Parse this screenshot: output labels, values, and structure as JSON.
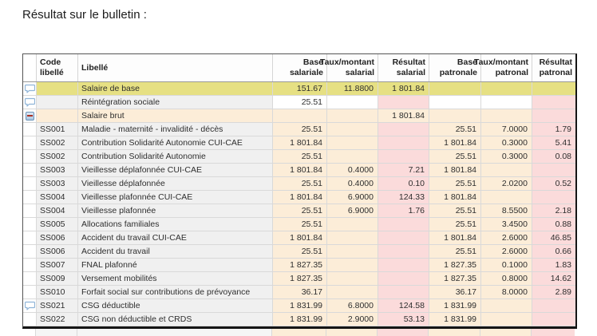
{
  "title": "Résultat sur le bulletin :",
  "colors": {
    "row_highlight_yellow": "#e6e083",
    "cell_base_beige": "#fcedd8",
    "cell_result_pink": "#fbdbdb",
    "cell_label_gray": "#f0f0f0",
    "row_outline_red": "#c5463b",
    "table_border_dark": "#151515",
    "comment_icon_blue": "#8fb4d8"
  },
  "table": {
    "columns": [
      {
        "id": "icon",
        "label": "",
        "align": "left"
      },
      {
        "id": "code",
        "label": "Code\nlibellé",
        "align": "left"
      },
      {
        "id": "libelle",
        "label": "Libellé",
        "align": "left"
      },
      {
        "id": "base_sal",
        "label": "Base\nsalariale",
        "align": "right"
      },
      {
        "id": "taux_sal",
        "label": "Taux/montant\nsalarial",
        "align": "right"
      },
      {
        "id": "res_sal",
        "label": "Résultat\nsalarial",
        "align": "right"
      },
      {
        "id": "base_pat",
        "label": "Base\npatronale",
        "align": "right"
      },
      {
        "id": "taux_pat",
        "label": "Taux/montant\npatronal",
        "align": "right"
      },
      {
        "id": "res_pat",
        "label": "Résultat\npatronal",
        "align": "right"
      }
    ],
    "rows": [
      {
        "icon": "comment",
        "code": "",
        "libelle": "Salaire de base",
        "base_sal": "151.67",
        "taux_sal": "11.8800",
        "res_sal": "1 801.84",
        "base_pat": "",
        "taux_pat": "",
        "res_pat": "",
        "type": "yellow",
        "outlined": false
      },
      {
        "icon": "comment",
        "code": "",
        "libelle": "Réintégration sociale",
        "base_sal": "25.51",
        "taux_sal": "",
        "res_sal": "",
        "base_pat": "",
        "taux_pat": "",
        "res_pat": "",
        "type": "plain",
        "outlined": false
      },
      {
        "icon": "collapse",
        "code": "",
        "libelle": "Salaire brut",
        "base_sal": "",
        "taux_sal": "",
        "res_sal": "1 801.84",
        "base_pat": "",
        "taux_pat": "",
        "res_pat": "",
        "type": "section",
        "outlined": false
      },
      {
        "icon": "",
        "code": "SS001",
        "libelle": "Maladie - maternité - invalidité - décès",
        "base_sal": "25.51",
        "taux_sal": "",
        "res_sal": "",
        "base_pat": "25.51",
        "taux_pat": "7.0000",
        "res_pat": "1.79",
        "type": "normal",
        "outlined": false
      },
      {
        "icon": "",
        "code": "SS002",
        "libelle": "Contribution Solidarité Autonomie CUI-CAE",
        "base_sal": "1 801.84",
        "taux_sal": "",
        "res_sal": "",
        "base_pat": "1 801.84",
        "taux_pat": "0.3000",
        "res_pat": "5.41",
        "type": "normal",
        "outlined": true
      },
      {
        "icon": "",
        "code": "SS002",
        "libelle": "Contribution Solidarité Autonomie",
        "base_sal": "25.51",
        "taux_sal": "",
        "res_sal": "",
        "base_pat": "25.51",
        "taux_pat": "0.3000",
        "res_pat": "0.08",
        "type": "normal",
        "outlined": false
      },
      {
        "icon": "",
        "code": "SS003",
        "libelle": "Vieillesse déplafonnée CUI-CAE",
        "base_sal": "1 801.84",
        "taux_sal": "0.4000",
        "res_sal": "7.21",
        "base_pat": "1 801.84",
        "taux_pat": "",
        "res_pat": "",
        "type": "normal",
        "outlined": true
      },
      {
        "icon": "",
        "code": "SS003",
        "libelle": "Vieillesse déplafonnée",
        "base_sal": "25.51",
        "taux_sal": "0.4000",
        "res_sal": "0.10",
        "base_pat": "25.51",
        "taux_pat": "2.0200",
        "res_pat": "0.52",
        "type": "normal",
        "outlined": false
      },
      {
        "icon": "",
        "code": "SS004",
        "libelle": "Vieillesse plafonnée CUI-CAE",
        "base_sal": "1 801.84",
        "taux_sal": "6.9000",
        "res_sal": "124.33",
        "base_pat": "1 801.84",
        "taux_pat": "",
        "res_pat": "",
        "type": "normal",
        "outlined": true
      },
      {
        "icon": "",
        "code": "SS004",
        "libelle": "Vieillesse plafonnée",
        "base_sal": "25.51",
        "taux_sal": "6.9000",
        "res_sal": "1.76",
        "base_pat": "25.51",
        "taux_pat": "8.5500",
        "res_pat": "2.18",
        "type": "normal",
        "outlined": false
      },
      {
        "icon": "",
        "code": "SS005",
        "libelle": "Allocations familiales",
        "base_sal": "25.51",
        "taux_sal": "",
        "res_sal": "",
        "base_pat": "25.51",
        "taux_pat": "3.4500",
        "res_pat": "0.88",
        "type": "normal",
        "outlined": false
      },
      {
        "icon": "",
        "code": "SS006",
        "libelle": "Accident du travail CUI-CAE",
        "base_sal": "1 801.84",
        "taux_sal": "",
        "res_sal": "",
        "base_pat": "1 801.84",
        "taux_pat": "2.6000",
        "res_pat": "46.85",
        "type": "normal",
        "outlined": true
      },
      {
        "icon": "",
        "code": "SS006",
        "libelle": "Accident du travail",
        "base_sal": "25.51",
        "taux_sal": "",
        "res_sal": "",
        "base_pat": "25.51",
        "taux_pat": "2.6000",
        "res_pat": "0.66",
        "type": "normal",
        "outlined": false
      },
      {
        "icon": "",
        "code": "SS007",
        "libelle": "FNAL plafonné",
        "base_sal": "1 827.35",
        "taux_sal": "",
        "res_sal": "",
        "base_pat": "1 827.35",
        "taux_pat": "0.1000",
        "res_pat": "1.83",
        "type": "normal",
        "outlined": false
      },
      {
        "icon": "",
        "code": "SS009",
        "libelle": "Versement mobilités",
        "base_sal": "1 827.35",
        "taux_sal": "",
        "res_sal": "",
        "base_pat": "1 827.35",
        "taux_pat": "0.8000",
        "res_pat": "14.62",
        "type": "normal",
        "outlined": false
      },
      {
        "icon": "",
        "code": "SS010",
        "libelle": "Forfait social sur contributions de prévoyance",
        "base_sal": "36.17",
        "taux_sal": "",
        "res_sal": "",
        "base_pat": "36.17",
        "taux_pat": "8.0000",
        "res_pat": "2.89",
        "type": "normal",
        "outlined": false
      },
      {
        "icon": "comment",
        "code": "SS021",
        "libelle": "CSG déductible",
        "base_sal": "1 831.99",
        "taux_sal": "6.8000",
        "res_sal": "124.58",
        "base_pat": "1 831.99",
        "taux_pat": "",
        "res_pat": "",
        "type": "normal",
        "outlined": false
      },
      {
        "icon": "",
        "code": "SS022",
        "libelle": "CSG non déductible et CRDS",
        "base_sal": "1 831.99",
        "taux_sal": "2.9000",
        "res_sal": "53.13",
        "base_pat": "1 831.99",
        "taux_pat": "",
        "res_pat": "",
        "type": "normal",
        "outlined": false
      }
    ]
  }
}
